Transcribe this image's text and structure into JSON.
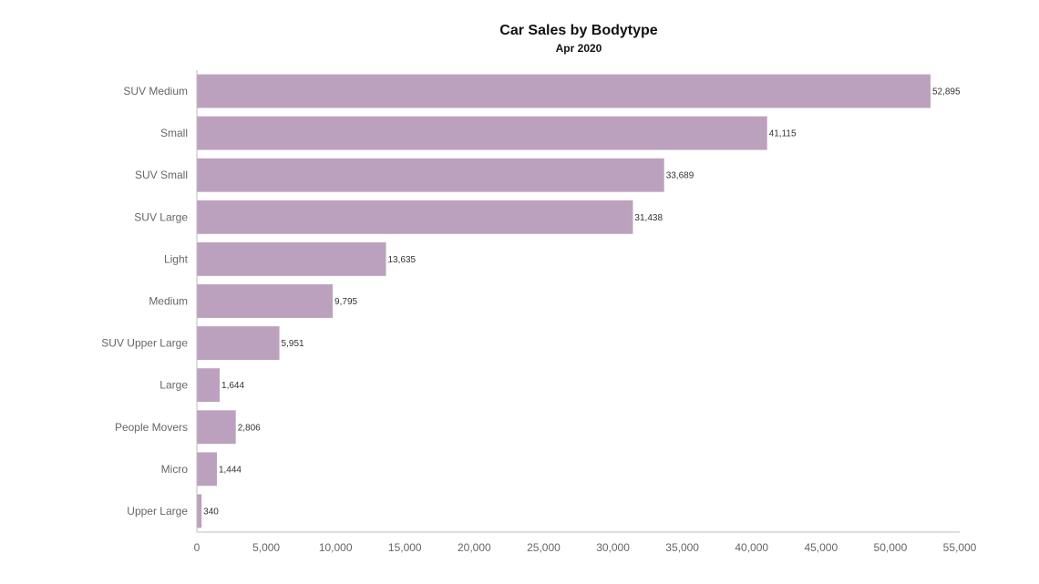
{
  "chart_data": {
    "type": "bar",
    "orientation": "horizontal",
    "title": "Car Sales by Bodytype",
    "subtitle": "Apr 2020",
    "categories": [
      "SUV Medium",
      "Small",
      "SUV Small",
      "SUV Large",
      "Light",
      "Medium",
      "SUV Upper Large",
      "Large",
      "People Movers",
      "Micro",
      "Upper Large"
    ],
    "values": [
      52895,
      41115,
      33689,
      31438,
      13635,
      9795,
      5951,
      1644,
      2806,
      1444,
      340
    ],
    "value_labels": [
      "52,895",
      "41,115",
      "33,689",
      "31,438",
      "13,635",
      "9,795",
      "5,951",
      "1,644",
      "2,806",
      "1,444",
      "340"
    ],
    "xlabel": "",
    "ylabel": "",
    "xlim": [
      0,
      55000
    ],
    "x_ticks": [
      0,
      5000,
      10000,
      15000,
      20000,
      25000,
      30000,
      35000,
      40000,
      45000,
      50000,
      55000
    ],
    "x_tick_labels": [
      "0",
      "5,000",
      "10,000",
      "15,000",
      "20,000",
      "25,000",
      "30,000",
      "35,000",
      "40,000",
      "45,000",
      "50,000",
      "55,000"
    ],
    "grid": false,
    "legend": "none",
    "colors": {
      "bar": "#bca1be",
      "axis": "#bdbdbd"
    }
  }
}
